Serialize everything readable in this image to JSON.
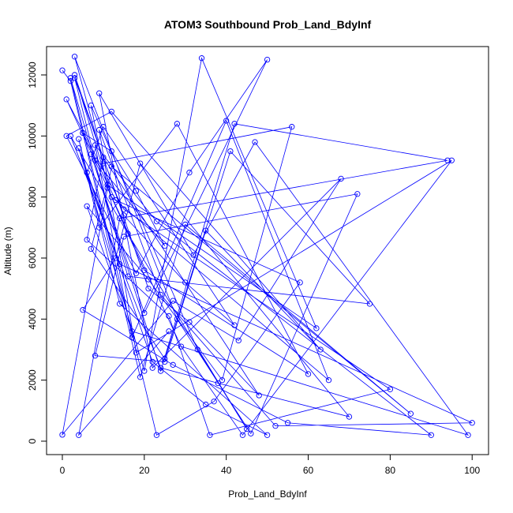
{
  "chart_data": {
    "type": "line",
    "title": "ATOM3 Southbound Prob_Land_BdyInf",
    "x_label": "Prob_Land_BdyInf",
    "y_label": "Altitude (m)",
    "x": [
      0,
      2,
      5,
      12,
      18,
      25,
      8,
      3,
      15,
      30,
      42,
      10,
      6,
      22,
      35,
      50,
      14,
      4,
      9,
      28,
      60,
      20,
      11,
      7,
      33,
      45,
      16,
      2,
      24,
      38,
      70,
      19,
      13,
      5,
      27,
      55,
      90,
      23,
      8,
      17,
      40,
      65,
      12,
      3,
      21,
      31,
      48,
      10,
      6,
      26,
      36,
      80,
      15,
      1,
      29,
      44,
      95,
      18,
      9,
      24,
      52,
      100,
      14,
      4,
      20,
      34,
      62,
      11,
      7,
      25,
      41,
      75,
      16,
      2,
      23,
      37,
      58,
      13,
      5,
      19,
      30,
      85,
      12,
      0,
      27,
      43,
      68,
      22,
      9,
      32,
      47,
      99,
      17,
      6,
      21,
      39,
      56,
      10,
      3,
      28,
      46,
      72,
      15,
      8,
      25,
      35,
      63,
      12,
      1,
      18,
      31,
      50,
      20,
      7,
      24,
      42,
      94,
      14,
      4,
      26
    ],
    "series": [
      {
        "name": "Altitude",
        "color": "#0000ff",
        "values": [
          12150,
          11800,
          10100,
          9500,
          8200,
          6400,
          9200,
          11900,
          7400,
          5200,
          3800,
          10300,
          8800,
          2600,
          1200,
          200,
          4500,
          9900,
          7000,
          10400,
          2200,
          5600,
          8300,
          11000,
          3000,
          400,
          6800,
          10000,
          2400,
          1900,
          800,
          9100,
          6000,
          4300,
          2500,
          600,
          200,
          7200,
          9700,
          3400,
          10500,
          2000,
          8000,
          12000,
          5000,
          3900,
          1500,
          9300,
          6600,
          4100,
          200,
          1700,
          7600,
          11200,
          3100,
          200,
          9200,
          2900,
          10200,
          4800,
          500,
          600,
          5800,
          9600,
          2300,
          12550,
          3700,
          8400,
          6300,
          2700,
          9500,
          4500,
          5400,
          11900,
          200,
          1300,
          5200,
          7900,
          10100,
          2100,
          7100,
          900,
          9000,
          210,
          4600,
          3300,
          8600,
          2400,
          11400,
          6100,
          9800,
          200,
          3600,
          7700,
          5300,
          2000,
          10300,
          9100,
          12600,
          4000,
          250,
          8100,
          6700,
          2800,
          2600,
          6900,
          3000,
          10800,
          10000,
          5500,
          8800,
          12500,
          4200,
          9400,
          2300,
          10400,
          9200,
          7300,
          200,
          3600
        ]
      }
    ],
    "xlim": [
      -3.85,
      104
    ],
    "ylim": [
      -440,
      12930
    ],
    "xticks": [
      0,
      20,
      40,
      60,
      80,
      100
    ],
    "yticks": [
      0,
      2000,
      4000,
      6000,
      8000,
      10000,
      12000
    ]
  }
}
